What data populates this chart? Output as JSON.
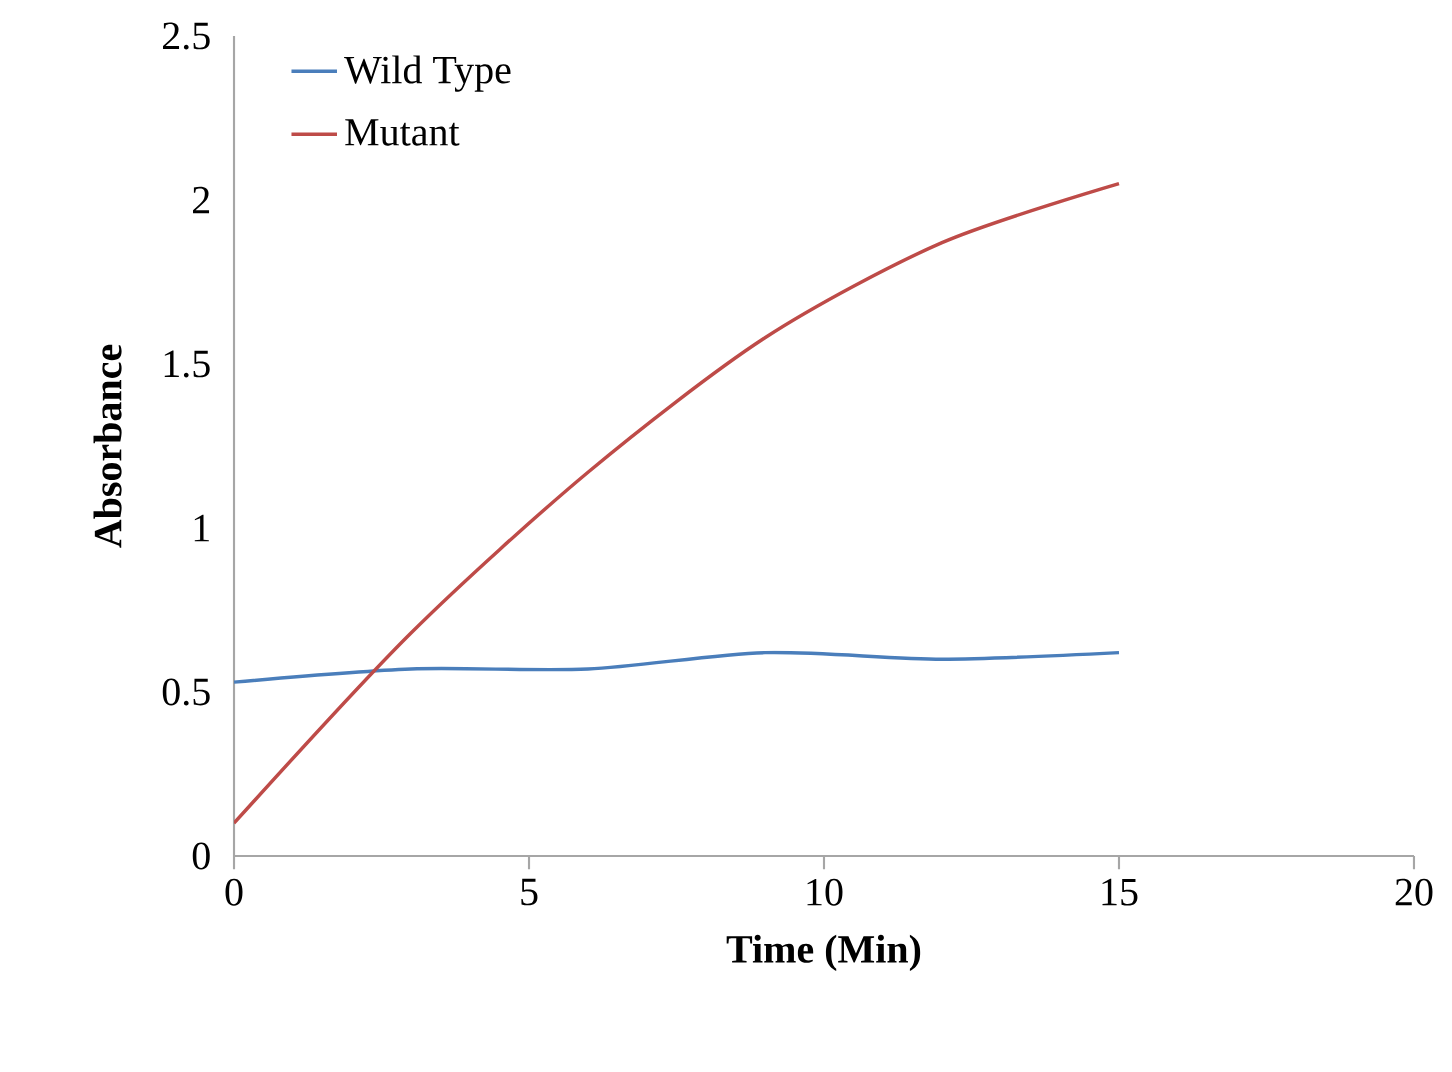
{
  "chart_data": {
    "type": "line",
    "xlabel": "Time (Min)",
    "ylabel": "Absorbance",
    "x": [
      0,
      3,
      6,
      9,
      12,
      15
    ],
    "series": [
      {
        "name": "Wild Type",
        "color": "#4a7ebb",
        "values": [
          0.53,
          0.57,
          0.57,
          0.62,
          0.6,
          0.62
        ]
      },
      {
        "name": "Mutant",
        "color": "#be4b48",
        "values": [
          0.1,
          0.68,
          1.17,
          1.58,
          1.87,
          2.05
        ]
      }
    ],
    "xlim": [
      0,
      20
    ],
    "xticks": [
      0,
      5,
      10,
      15,
      20
    ],
    "ylim": [
      0,
      2.5
    ],
    "yticks": [
      0,
      0.5,
      1,
      1.5,
      2,
      2.5
    ],
    "grid": false,
    "legend": "top left",
    "marker": "none",
    "line_style": "solid"
  }
}
